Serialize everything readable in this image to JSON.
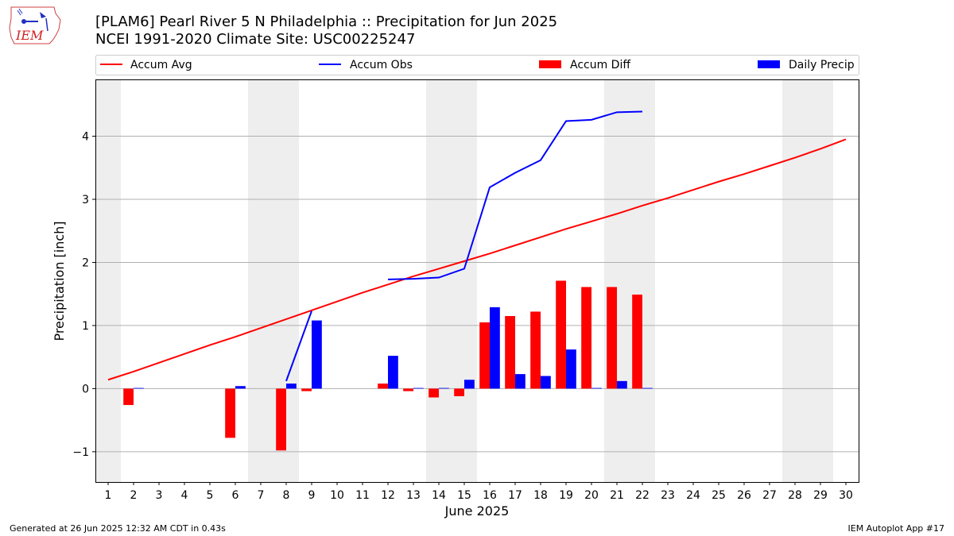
{
  "header": {
    "title_line1": "[PLAM6] Pearl River 5 N Philadelphia :: Precipitation for Jun 2025",
    "title_line2": "NCEI 1991-2020 Climate Site: USC00225247"
  },
  "logo": {
    "text": "IEM"
  },
  "footer": {
    "left": "Generated at 26 Jun 2025 12:32 AM CDT in 0.43s",
    "right": "IEM Autoplot App #17"
  },
  "colors": {
    "avg": "#ff0000",
    "obs": "#0000ff",
    "diff": "#ff0000",
    "daily": "#0000ff",
    "weekend": "#eeeeee",
    "grid": "#b0b0b0"
  },
  "chart_data": {
    "type": "bar",
    "xlabel": "June 2025",
    "ylabel": "Precipitation [inch]",
    "xlim": [
      0.5,
      30.5
    ],
    "ylim": [
      -1.48,
      4.9
    ],
    "x_ticks": [
      1,
      2,
      3,
      4,
      5,
      6,
      7,
      8,
      9,
      10,
      11,
      12,
      13,
      14,
      15,
      16,
      17,
      18,
      19,
      20,
      21,
      22,
      23,
      24,
      25,
      26,
      27,
      28,
      29,
      30
    ],
    "y_ticks": [
      -1,
      0,
      1,
      2,
      3,
      4
    ],
    "y_tick_labels": [
      "−1",
      "0",
      "1",
      "2",
      "3",
      "4"
    ],
    "grid": "horizontal",
    "legend_placement": "top",
    "shaded_days": [
      [
        0.5,
        1.5
      ],
      [
        6.5,
        8.5
      ],
      [
        13.5,
        15.5
      ],
      [
        20.5,
        22.5
      ],
      [
        27.5,
        29.5
      ]
    ],
    "legend": [
      "Accum Avg",
      "Accum Obs",
      "Accum Diff",
      "Daily Precip"
    ],
    "accum_avg": {
      "x": [
        1,
        2,
        3,
        4,
        5,
        6,
        7,
        8,
        9,
        10,
        11,
        12,
        13,
        14,
        15,
        16,
        17,
        18,
        19,
        20,
        21,
        22,
        23,
        24,
        25,
        26,
        27,
        28,
        29,
        30
      ],
      "values": [
        0.14,
        0.27,
        0.41,
        0.55,
        0.69,
        0.82,
        0.96,
        1.1,
        1.24,
        1.38,
        1.52,
        1.65,
        1.78,
        1.9,
        2.02,
        2.14,
        2.27,
        2.4,
        2.53,
        2.65,
        2.77,
        2.9,
        3.02,
        3.15,
        3.28,
        3.4,
        3.53,
        3.66,
        3.8,
        3.95
      ]
    },
    "accum_obs": {
      "segments": [
        {
          "x": [
            8,
            9
          ],
          "values": [
            0.12,
            1.23
          ]
        },
        {
          "x": [
            12,
            13,
            14,
            15,
            16,
            17,
            18,
            19,
            20,
            21,
            22
          ],
          "values": [
            1.73,
            1.74,
            1.76,
            1.9,
            3.19,
            3.42,
            3.62,
            4.24,
            4.26,
            4.38,
            4.39
          ]
        }
      ]
    },
    "accum_diff": {
      "x": [
        2,
        6,
        8,
        9,
        12,
        13,
        14,
        15,
        16,
        17,
        18,
        19,
        20,
        21,
        22
      ],
      "values": [
        -0.26,
        -0.78,
        -0.98,
        -0.04,
        0.08,
        -0.04,
        -0.14,
        -0.12,
        1.05,
        1.15,
        1.22,
        1.71,
        1.61,
        1.61,
        1.49
      ]
    },
    "daily_precip": {
      "x": [
        2,
        6,
        8,
        9,
        12,
        13,
        14,
        15,
        16,
        17,
        18,
        19,
        20,
        21,
        22
      ],
      "values": [
        0.01,
        0.04,
        0.08,
        1.08,
        0.52,
        0.01,
        0.01,
        0.14,
        1.29,
        0.23,
        0.2,
        0.62,
        0.01,
        0.12,
        0.01
      ]
    }
  }
}
